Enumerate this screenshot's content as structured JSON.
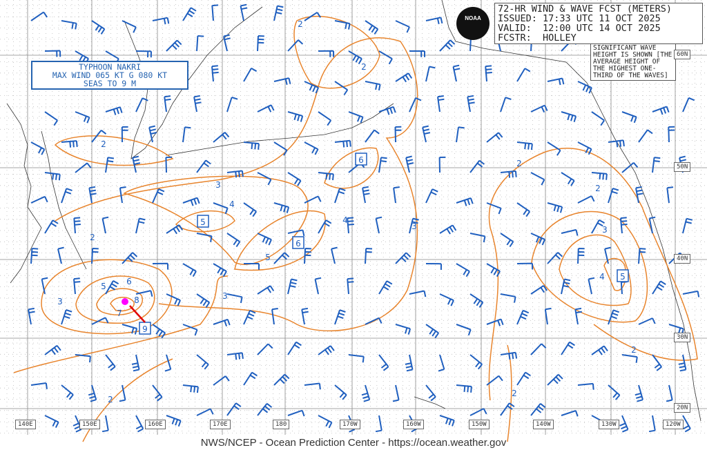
{
  "header": {
    "title": "72-HR WIND & WAVE FCST (METERS)",
    "issued": "ISSUED: 17:33 UTC 11 OCT 2025",
    "valid": "VALID:  12:00 UTC 14 OCT 2025",
    "forecaster": "FCSTR:  HOLLEY"
  },
  "logo_text": "NOAA",
  "note": "SIGNIFICANT WAVE HEIGHT IS SHOWN [THE AVERAGE HEIGHT OF THE HIGHEST ONE-THIRD OF THE WAVES]",
  "typhoon": {
    "line1": "TYPHOON NAKRI",
    "line2": "MAX WIND 065 KT G 080 KT",
    "line3": "SEAS TO 9 M"
  },
  "latitudes": [
    "60N",
    "50N",
    "40N",
    "30N",
    "20N"
  ],
  "longitudes": [
    "140E",
    "150E",
    "160E",
    "170E",
    "180",
    "170W",
    "160W",
    "150W",
    "140W",
    "130W",
    "120W"
  ],
  "wave_labels": [
    "2",
    "2",
    "2",
    "3",
    "4",
    "4",
    "3",
    "2",
    "5",
    "6",
    "5",
    "3",
    "8",
    "7",
    "3",
    "2",
    "2",
    "3",
    "4",
    "2",
    "2",
    "2"
  ],
  "wave_maxima": [
    "5",
    "6",
    "6",
    "9",
    "5"
  ],
  "colors": {
    "contour": "#e8842c",
    "barb": "#1f5fbf",
    "typhoon": "#ff00ff",
    "grid": "#888888"
  },
  "footer": "NWS/NCEP - Ocean Prediction Center - https://ocean.weather.gov"
}
